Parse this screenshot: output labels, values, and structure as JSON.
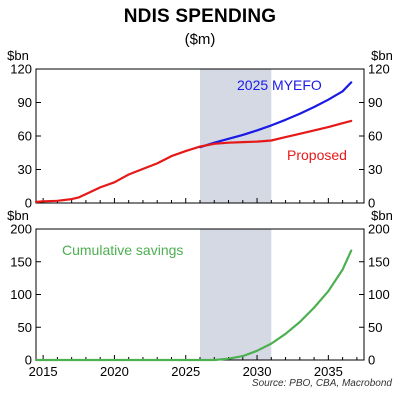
{
  "title": "NDIS SPENDING",
  "subtitle": "($m)",
  "source": "Source: PBO, CBA, Macrobond",
  "colors": {
    "myefo": "#1a1ae6",
    "proposed": "#e61919",
    "savings": "#4caf50",
    "shade": "#d5d9e4"
  },
  "chart_data": [
    {
      "type": "line",
      "units": "$bn",
      "ylim": [
        0,
        120
      ],
      "yticks": [
        0,
        30,
        60,
        90,
        120
      ],
      "xlim": [
        2014.5,
        2037.5
      ],
      "shaded_region": [
        2026,
        2031
      ],
      "grid": false,
      "series": [
        {
          "name": "2025 MYEFO",
          "color": "#1a1ae6",
          "x": [
            2026,
            2027,
            2028,
            2029,
            2030,
            2031,
            2032,
            2033,
            2034,
            2035,
            2036,
            2036.6
          ],
          "y": [
            50,
            54,
            57.5,
            61,
            65,
            69.5,
            74.5,
            80,
            86,
            92.5,
            100,
            108
          ]
        },
        {
          "name": "Proposed",
          "color": "#e61919",
          "x": [
            2014.5,
            2015,
            2016,
            2017,
            2017.5,
            2018,
            2019,
            2020,
            2021,
            2022,
            2023,
            2024,
            2025,
            2026,
            2027,
            2028,
            2029,
            2030,
            2031,
            2032,
            2033,
            2034,
            2035,
            2036,
            2036.6
          ],
          "y": [
            1,
            1.5,
            2,
            3.5,
            5,
            8,
            14,
            18.5,
            25.5,
            30.5,
            35.5,
            42,
            46.5,
            50.5,
            53,
            54,
            54.5,
            55,
            56,
            59,
            62,
            65,
            68,
            71.5,
            73.5
          ]
        }
      ]
    },
    {
      "type": "line",
      "units": "$bn",
      "ylim": [
        0,
        200
      ],
      "yticks": [
        0,
        50,
        100,
        150,
        200
      ],
      "xlim": [
        2014.5,
        2037.5
      ],
      "xticks": [
        2015,
        2020,
        2025,
        2030,
        2035
      ],
      "shaded_region": [
        2026,
        2031
      ],
      "grid": false,
      "series": [
        {
          "name": "Cumulative savings",
          "color": "#4caf50",
          "x": [
            2014.5,
            2027,
            2028,
            2029,
            2030,
            2031,
            2032,
            2033,
            2034,
            2035,
            2036,
            2036.6
          ],
          "y": [
            0,
            0,
            2,
            6,
            14,
            25,
            40,
            58,
            80,
            105,
            138,
            167
          ]
        }
      ]
    }
  ]
}
